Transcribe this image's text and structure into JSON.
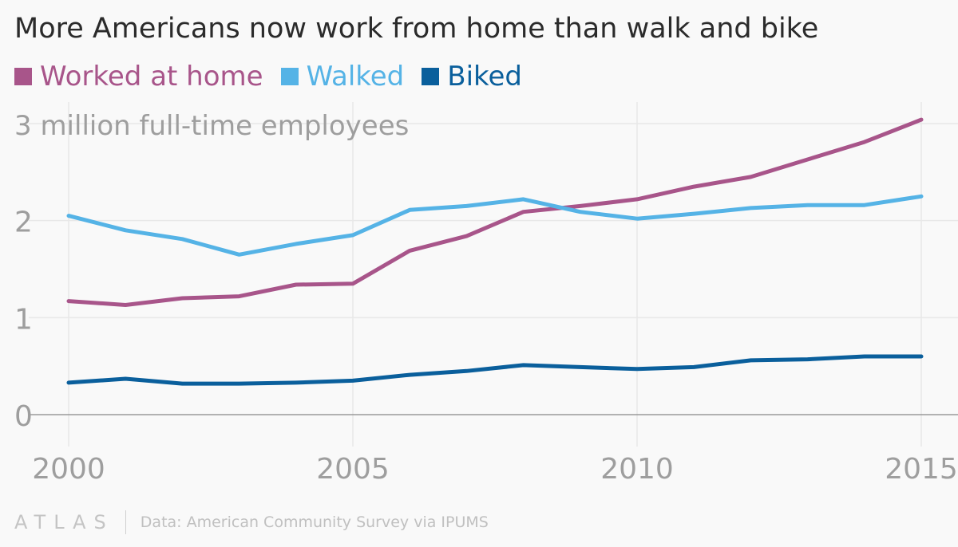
{
  "chart_data": {
    "type": "line",
    "title": "More Americans now work from home than walk and bike",
    "ylabel": "3 million full-time employees",
    "xlabel": "",
    "x": [
      2000,
      2001,
      2002,
      2003,
      2004,
      2005,
      2006,
      2007,
      2008,
      2009,
      2010,
      2011,
      2012,
      2013,
      2014,
      2015
    ],
    "xlim": [
      2000,
      2015
    ],
    "ylim": [
      0,
      3
    ],
    "xticks": [
      "2000",
      "2005",
      "2010",
      "2015"
    ],
    "yticks": [
      "0",
      "1",
      "2"
    ],
    "series": [
      {
        "name": "Worked at home",
        "color": "#a8558a",
        "values": [
          1.17,
          1.13,
          1.2,
          1.22,
          1.34,
          1.35,
          1.69,
          1.84,
          2.09,
          2.15,
          2.22,
          2.35,
          2.45,
          2.63,
          2.81,
          3.04
        ]
      },
      {
        "name": "Walked",
        "color": "#55b3e6",
        "values": [
          2.05,
          1.9,
          1.81,
          1.65,
          1.76,
          1.85,
          2.11,
          2.15,
          2.22,
          2.09,
          2.02,
          2.07,
          2.13,
          2.16,
          2.16,
          2.25
        ]
      },
      {
        "name": "Biked",
        "color": "#0a5f9c",
        "values": [
          0.33,
          0.37,
          0.32,
          0.32,
          0.33,
          0.35,
          0.41,
          0.45,
          0.51,
          0.49,
          0.47,
          0.49,
          0.56,
          0.57,
          0.6,
          0.6
        ]
      }
    ]
  },
  "footer": {
    "logo": "ATLAS",
    "source": "Data: American Community Survey via IPUMS"
  }
}
